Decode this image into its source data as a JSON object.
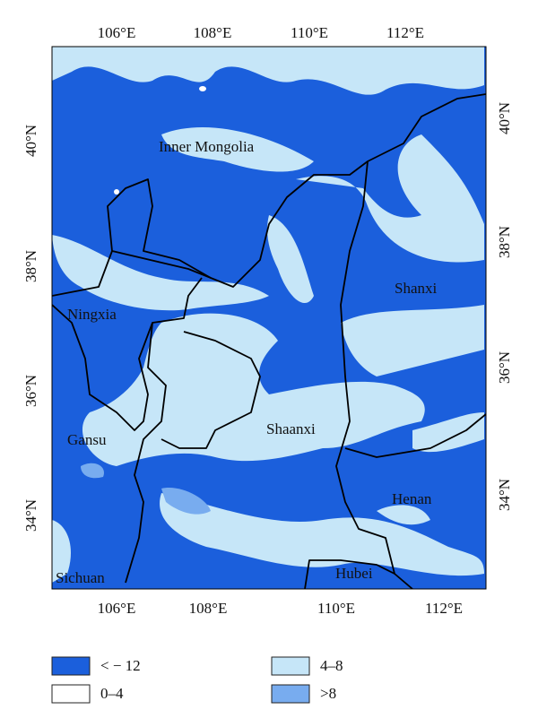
{
  "map": {
    "x_ticks": [
      "106°E",
      "108°E",
      "110°E",
      "112°E"
    ],
    "y_ticks": [
      "40°N",
      "38°N",
      "36°N",
      "34°N"
    ],
    "regions": [
      "Inner Mongolia",
      "Ningxia",
      "Shanxi",
      "Gansu",
      "Shaanxi",
      "Henan",
      "Hubei",
      "Sichuan"
    ],
    "legend": [
      {
        "label": "< − 12",
        "color": "#1b5fdc"
      },
      {
        "label": "0–4",
        "color": "#ffffff"
      },
      {
        "label": "4–8",
        "color": "#c6e6f8"
      },
      {
        "label": ">8",
        "color": "#78acef"
      }
    ]
  }
}
